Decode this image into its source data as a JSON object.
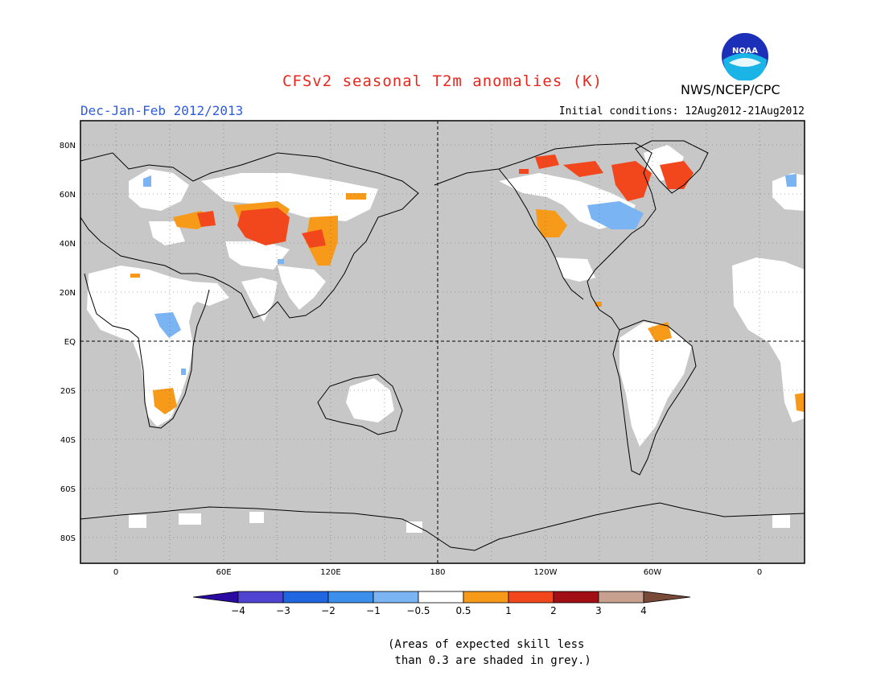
{
  "title": "CFSv2 seasonal T2m anomalies (K)",
  "season": "Dec-Jan-Feb 2012/2013",
  "initial_conditions": "Initial conditions: 12Aug2012-21Aug2012",
  "agency": "NWS/NCEP/CPC",
  "logo_text": "NOAA",
  "colors": {
    "title": "#e8281e",
    "season": "#2f5be0",
    "grey": "#c7c7c7",
    "land_skill": "#ffffff"
  },
  "lat_labels": [
    "80N",
    "60N",
    "40N",
    "20N",
    "EQ",
    "20S",
    "40S",
    "60S",
    "80S"
  ],
  "lon_labels": [
    "0",
    "60E",
    "120E",
    "180",
    "120W",
    "60W",
    "0"
  ],
  "colorbar": {
    "bins": [
      {
        "color": "#2a0aa0"
      },
      {
        "color": "#4f44d2"
      },
      {
        "color": "#1f66e0"
      },
      {
        "color": "#3c90ec"
      },
      {
        "color": "#7ab4f2"
      },
      {
        "color": "#ffffff"
      },
      {
        "color": "#f79a1a"
      },
      {
        "color": "#f2461c"
      },
      {
        "color": "#a10e14"
      },
      {
        "color": "#c8a090"
      },
      {
        "color": "#7a4a38"
      }
    ],
    "labels": [
      "−4",
      "−3",
      "−2",
      "−1",
      "−0.5",
      "0.5",
      "1",
      "2",
      "3",
      "4"
    ]
  },
  "note_line1": "(Areas of expected skill less",
  "note_line2": " than 0.3 are shaded in grey.)"
}
